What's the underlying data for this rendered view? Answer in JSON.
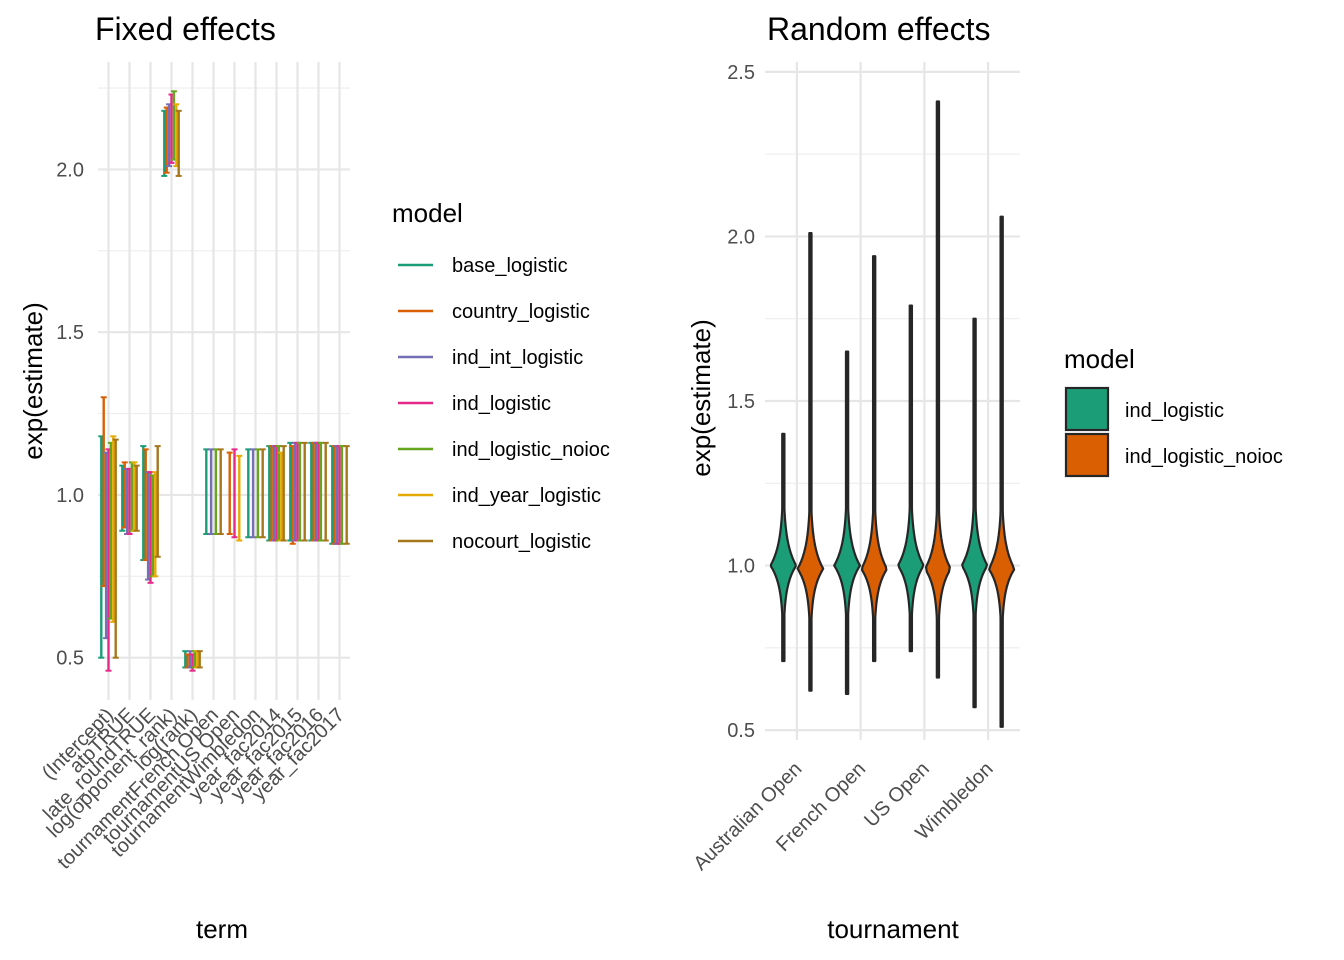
{
  "chart_data": [
    {
      "type": "error-bar",
      "title": "Fixed effects",
      "xlabel": "term",
      "ylabel": "exp(estimate)",
      "ylim": [
        0.37,
        2.33
      ],
      "yticks": [
        0.5,
        1.0,
        1.5,
        2.0
      ],
      "ytick_labels": [
        "0.5",
        "1.0",
        "1.5",
        "2.0"
      ],
      "grid": true,
      "legend": {
        "title": "model",
        "placement": "right",
        "entries": [
          "base_logistic",
          "country_logistic",
          "ind_int_logistic",
          "ind_logistic",
          "ind_logistic_noioc",
          "ind_year_logistic",
          "nocourt_logistic"
        ]
      },
      "colors": [
        "#1b9e77",
        "#d95f02",
        "#7570b3",
        "#e7298a",
        "#66a61e",
        "#e6ab02",
        "#a6761d"
      ],
      "categories": [
        "(Intercept)",
        "atpTRUE",
        "late_roundTRUE",
        "log(opponent_rank)",
        "log(rank)",
        "tournamentFrench Open",
        "tournamentUS Open",
        "tournamentWimbledon",
        "year_fac2014",
        "year_fac2015",
        "year_fac2016",
        "year_fac2017"
      ],
      "series": [
        {
          "name": "base_logistic",
          "intervals": [
            [
              0.5,
              1.18
            ],
            [
              0.89,
              1.09
            ],
            [
              0.8,
              1.15
            ],
            [
              1.98,
              2.18
            ],
            [
              0.47,
              0.52
            ],
            [
              0.88,
              1.14
            ],
            null,
            [
              0.87,
              1.14
            ],
            [
              0.86,
              1.15
            ],
            [
              0.86,
              1.16
            ],
            [
              0.86,
              1.16
            ],
            [
              0.85,
              1.15
            ]
          ]
        },
        {
          "name": "country_logistic",
          "intervals": [
            [
              0.72,
              1.3
            ],
            [
              0.9,
              1.1
            ],
            [
              0.8,
              1.14
            ],
            [
              1.99,
              2.19
            ],
            [
              0.47,
              0.51
            ],
            null,
            [
              0.88,
              1.13
            ],
            null,
            [
              0.86,
              1.15
            ],
            [
              0.85,
              1.15
            ],
            [
              0.86,
              1.16
            ],
            [
              0.85,
              1.15
            ]
          ]
        },
        {
          "name": "ind_int_logistic",
          "intervals": [
            [
              0.56,
              1.13
            ],
            [
              0.88,
              1.08
            ],
            [
              0.74,
              1.07
            ],
            [
              2.01,
              2.2
            ],
            [
              0.47,
              0.52
            ],
            [
              0.88,
              1.14
            ],
            null,
            [
              0.87,
              1.14
            ],
            [
              0.86,
              1.15
            ],
            [
              0.86,
              1.16
            ],
            [
              0.86,
              1.16
            ],
            [
              0.85,
              1.15
            ]
          ]
        },
        {
          "name": "ind_logistic",
          "intervals": [
            [
              0.46,
              1.14
            ],
            [
              0.88,
              1.08
            ],
            [
              0.73,
              1.07
            ],
            [
              2.02,
              2.23
            ],
            [
              0.46,
              0.51
            ],
            null,
            [
              0.87,
              1.14
            ],
            null,
            [
              0.86,
              1.15
            ],
            [
              0.86,
              1.16
            ],
            [
              0.86,
              1.16
            ],
            [
              0.85,
              1.15
            ]
          ]
        },
        {
          "name": "ind_logistic_noioc",
          "intervals": [
            [
              0.62,
              1.16
            ],
            [
              0.89,
              1.1
            ],
            [
              0.75,
              1.06
            ],
            [
              2.03,
              2.24
            ],
            [
              0.47,
              0.52
            ],
            [
              0.88,
              1.14
            ],
            null,
            [
              0.87,
              1.14
            ],
            [
              0.86,
              1.15
            ],
            [
              0.86,
              1.16
            ],
            [
              0.86,
              1.16
            ],
            [
              0.85,
              1.15
            ]
          ]
        },
        {
          "name": "ind_year_logistic",
          "intervals": [
            [
              0.61,
              1.18
            ],
            [
              0.89,
              1.1
            ],
            [
              0.75,
              1.07
            ],
            [
              2.01,
              2.2
            ],
            [
              0.47,
              0.52
            ],
            null,
            [
              0.86,
              1.12
            ],
            null,
            [
              0.86,
              1.13
            ],
            null,
            null,
            null
          ]
        },
        {
          "name": "nocourt_logistic",
          "intervals": [
            [
              0.5,
              1.17
            ],
            [
              0.89,
              1.09
            ],
            [
              0.81,
              1.15
            ],
            [
              1.98,
              2.18
            ],
            [
              0.47,
              0.52
            ],
            [
              0.88,
              1.14
            ],
            null,
            [
              0.87,
              1.14
            ],
            [
              0.86,
              1.15
            ],
            [
              0.86,
              1.16
            ],
            [
              0.86,
              1.16
            ],
            [
              0.85,
              1.15
            ]
          ]
        }
      ]
    },
    {
      "type": "violin",
      "title": "Random effects",
      "xlabel": "tournament",
      "ylabel": "exp(estimate)",
      "ylim": [
        0.47,
        2.53
      ],
      "yticks": [
        0.5,
        1.0,
        1.5,
        2.0,
        2.5
      ],
      "ytick_labels": [
        "0.5",
        "1.0",
        "1.5",
        "2.0",
        "2.5"
      ],
      "grid": true,
      "categories": [
        "Australian Open",
        "French Open",
        "US Open",
        "Wimbledon"
      ],
      "legend": {
        "title": "model",
        "placement": "right",
        "entries": [
          "ind_logistic",
          "ind_logistic_noioc"
        ]
      },
      "colors": [
        "#1b9e77",
        "#d95f02"
      ],
      "series": [
        {
          "name": "ind_logistic",
          "violins": [
            {
              "category": "Australian Open",
              "min": 0.71,
              "max": 1.4,
              "mode": 1.0
            },
            {
              "category": "French Open",
              "min": 0.61,
              "max": 1.65,
              "mode": 1.0
            },
            {
              "category": "US Open",
              "min": 0.74,
              "max": 1.79,
              "mode": 1.0
            },
            {
              "category": "Wimbledon",
              "min": 0.57,
              "max": 1.75,
              "mode": 1.0
            }
          ]
        },
        {
          "name": "ind_logistic_noioc",
          "violins": [
            {
              "category": "Australian Open",
              "min": 0.62,
              "max": 2.01,
              "mode": 0.99
            },
            {
              "category": "French Open",
              "min": 0.71,
              "max": 1.94,
              "mode": 0.99
            },
            {
              "category": "US Open",
              "min": 0.66,
              "max": 2.41,
              "mode": 0.99
            },
            {
              "category": "Wimbledon",
              "min": 0.51,
              "max": 2.06,
              "mode": 0.99
            }
          ]
        }
      ]
    }
  ]
}
